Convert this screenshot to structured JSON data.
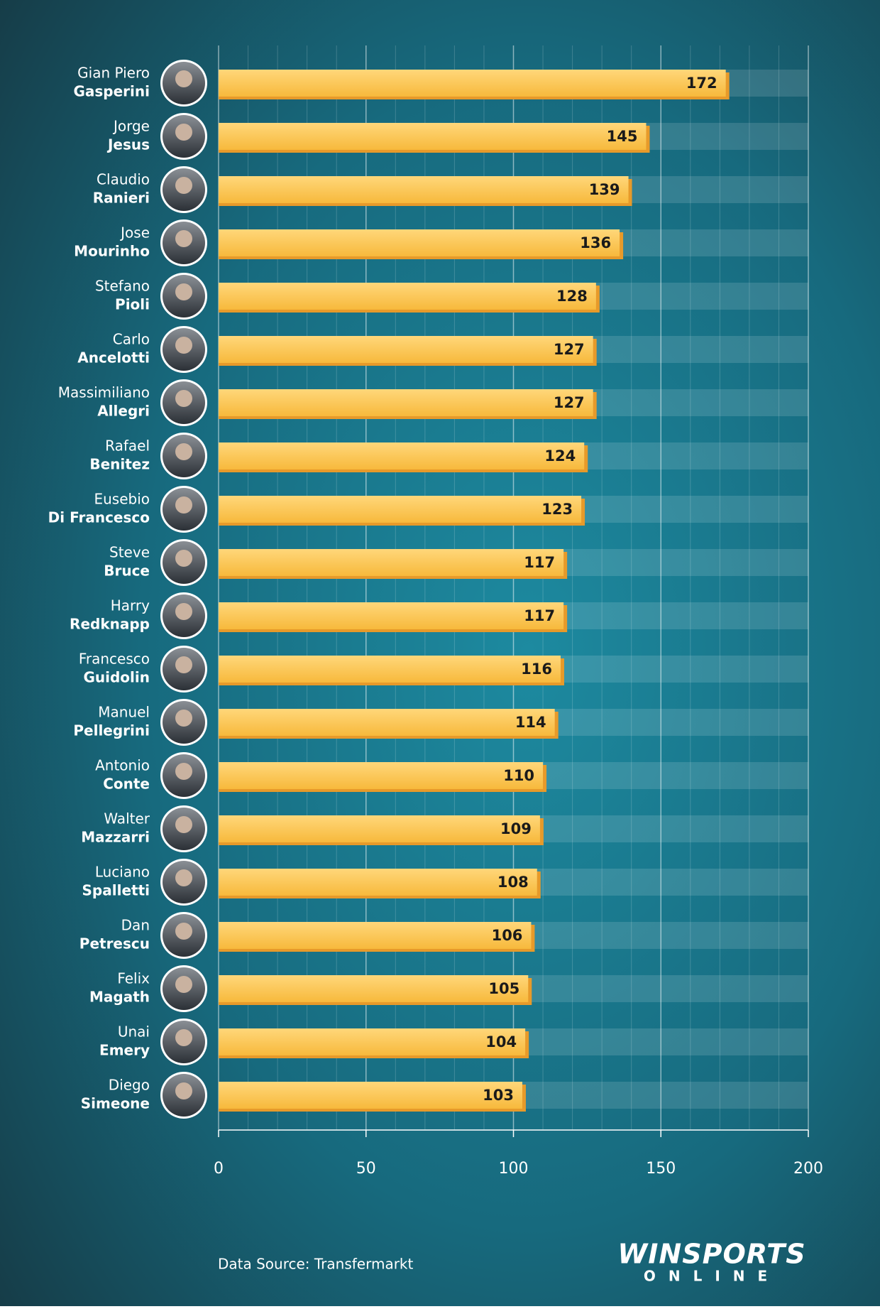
{
  "chart_data": {
    "type": "bar",
    "orientation": "horizontal",
    "categories": [
      [
        "Gian Piero",
        "Gasperini"
      ],
      [
        "Jorge",
        "Jesus"
      ],
      [
        "Claudio",
        "Ranieri"
      ],
      [
        "Jose",
        "Mourinho"
      ],
      [
        "Stefano",
        "Pioli"
      ],
      [
        "Carlo",
        "Ancelotti"
      ],
      [
        "Massimiliano",
        "Allegri"
      ],
      [
        "Rafael",
        "Benitez"
      ],
      [
        "Eusebio",
        "Di Francesco"
      ],
      [
        "Steve",
        "Bruce"
      ],
      [
        "Harry",
        "Redknapp"
      ],
      [
        "Francesco",
        "Guidolin"
      ],
      [
        "Manuel",
        "Pellegrini"
      ],
      [
        "Antonio",
        "Conte"
      ],
      [
        "Walter",
        "Mazzarri"
      ],
      [
        "Luciano",
        "Spalletti"
      ],
      [
        "Dan",
        "Petrescu"
      ],
      [
        "Felix",
        "Magath"
      ],
      [
        "Unai",
        "Emery"
      ],
      [
        "Diego",
        "Simeone"
      ]
    ],
    "values": [
      172,
      145,
      139,
      136,
      128,
      127,
      127,
      124,
      123,
      117,
      117,
      116,
      114,
      110,
      109,
      108,
      106,
      105,
      104,
      103
    ],
    "color": "#f9c04a",
    "xlim": [
      0,
      200
    ],
    "xticks": [
      0,
      50,
      100,
      150,
      200
    ],
    "minor_xticks": [
      10,
      20,
      30,
      40,
      60,
      70,
      80,
      90,
      110,
      120,
      130,
      140,
      160,
      170,
      180,
      190
    ],
    "grid": true,
    "source": "Data Source: Transfermarkt",
    "logo": {
      "main": "WINSPORTS",
      "sub": "ONLINE"
    }
  }
}
